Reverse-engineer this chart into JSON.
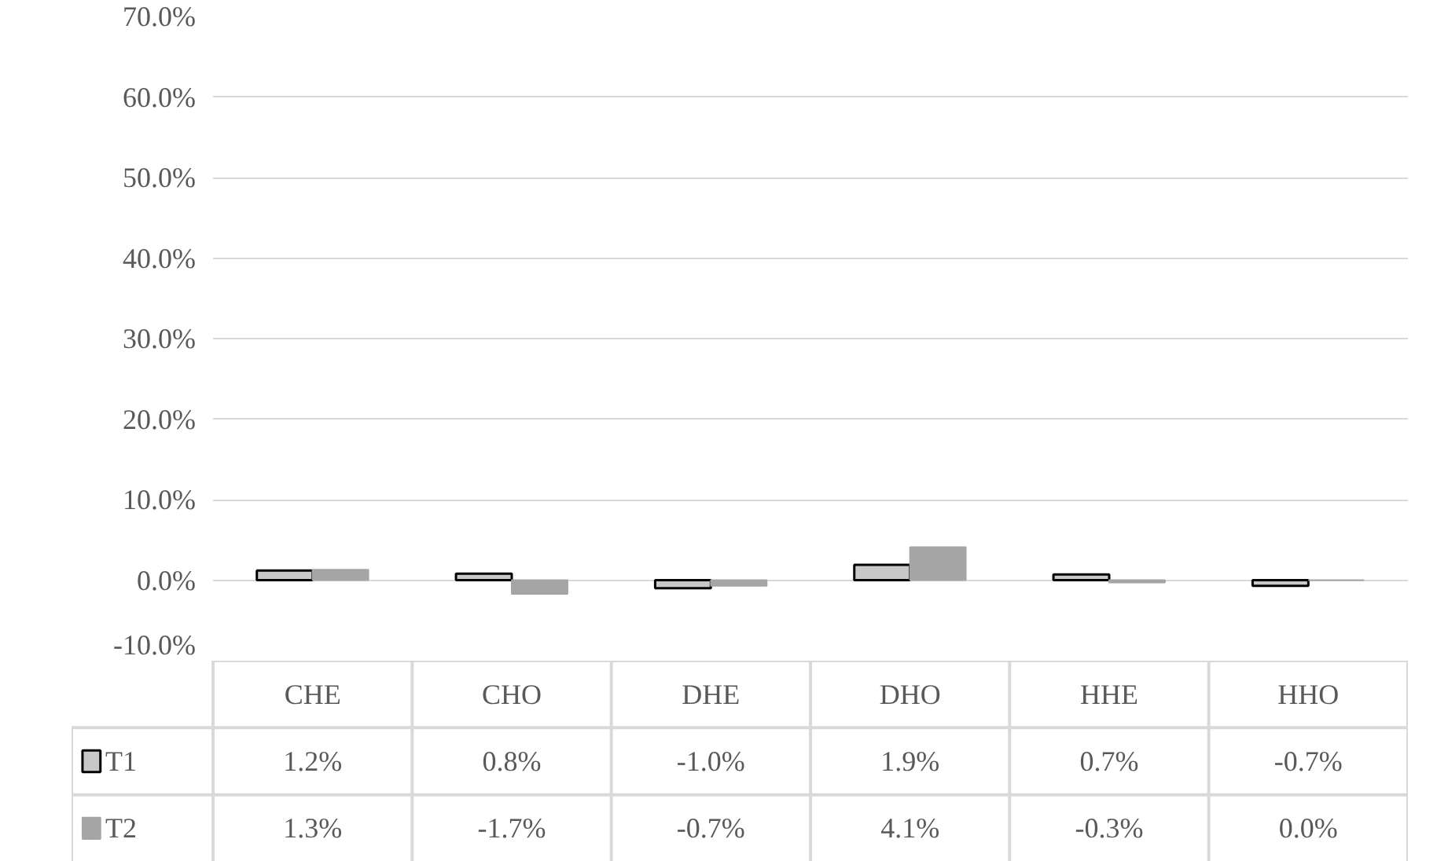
{
  "chart_data": {
    "type": "bar",
    "categories": [
      "CHE",
      "CHO",
      "DHE",
      "DHO",
      "HHE",
      "HHO"
    ],
    "series": [
      {
        "name": "T1",
        "color": "#c8c8c8",
        "values": [
          1.2,
          0.8,
          -1.0,
          1.9,
          0.7,
          -0.7
        ],
        "value_labels": [
          "1.2%",
          "0.8%",
          "-1.0%",
          "1.9%",
          "0.7%",
          "-0.7%"
        ]
      },
      {
        "name": "T2",
        "color": "#a5a5a5",
        "values": [
          1.3,
          -1.7,
          -0.7,
          4.1,
          -0.3,
          0.0
        ],
        "value_labels": [
          "1.3%",
          "-1.7%",
          "-0.7%",
          "4.1%",
          "-0.3%",
          "0.0%"
        ]
      }
    ],
    "ylim": [
      -10,
      70
    ],
    "yticks": [
      {
        "value": -10,
        "label": "-10.0%"
      },
      {
        "value": 0,
        "label": "0.0%"
      },
      {
        "value": 10,
        "label": "10.0%"
      },
      {
        "value": 20,
        "label": "20.0%"
      },
      {
        "value": 30,
        "label": "30.0%"
      },
      {
        "value": 40,
        "label": "40.0%"
      },
      {
        "value": 50,
        "label": "50.0%"
      },
      {
        "value": 60,
        "label": "60.0%"
      },
      {
        "value": 70,
        "label": "70.0%"
      }
    ],
    "grid": "y",
    "legend": "bottom"
  }
}
